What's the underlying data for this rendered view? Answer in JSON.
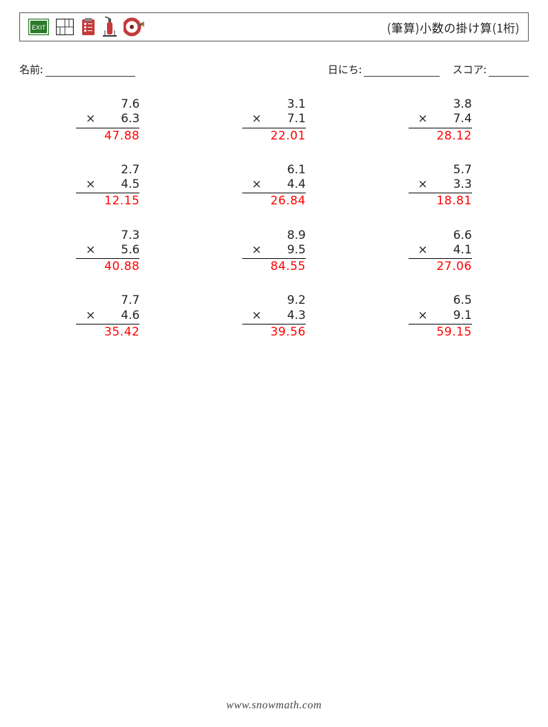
{
  "header": {
    "title": "(筆算)小数の掛け算(1桁)",
    "icons": [
      "exit-sign-icon",
      "floor-plan-icon",
      "clipboard-icon",
      "fire-extinguisher-icon",
      "fire-hose-icon"
    ]
  },
  "meta": {
    "name_label": "名前:",
    "date_label": "日にち:",
    "score_label": "スコア:"
  },
  "style": {
    "answer_color": "#ff0000",
    "text_color": "#222222",
    "border_color": "#555555",
    "op_symbol": "×",
    "font_size_body": 17,
    "font_size_meta": 15,
    "columns": 3,
    "rows": 4
  },
  "problems": [
    {
      "a": "7.6",
      "b": "6.3",
      "ans": "47.88"
    },
    {
      "a": "3.1",
      "b": "7.1",
      "ans": "22.01"
    },
    {
      "a": "3.8",
      "b": "7.4",
      "ans": "28.12"
    },
    {
      "a": "2.7",
      "b": "4.5",
      "ans": "12.15"
    },
    {
      "a": "6.1",
      "b": "4.4",
      "ans": "26.84"
    },
    {
      "a": "5.7",
      "b": "3.3",
      "ans": "18.81"
    },
    {
      "a": "7.3",
      "b": "5.6",
      "ans": "40.88"
    },
    {
      "a": "8.9",
      "b": "9.5",
      "ans": "84.55"
    },
    {
      "a": "6.6",
      "b": "4.1",
      "ans": "27.06"
    },
    {
      "a": "7.7",
      "b": "4.6",
      "ans": "35.42"
    },
    {
      "a": "9.2",
      "b": "4.3",
      "ans": "39.56"
    },
    {
      "a": "6.5",
      "b": "9.1",
      "ans": "59.15"
    }
  ],
  "footer": {
    "text": "www.snowmath.com"
  }
}
